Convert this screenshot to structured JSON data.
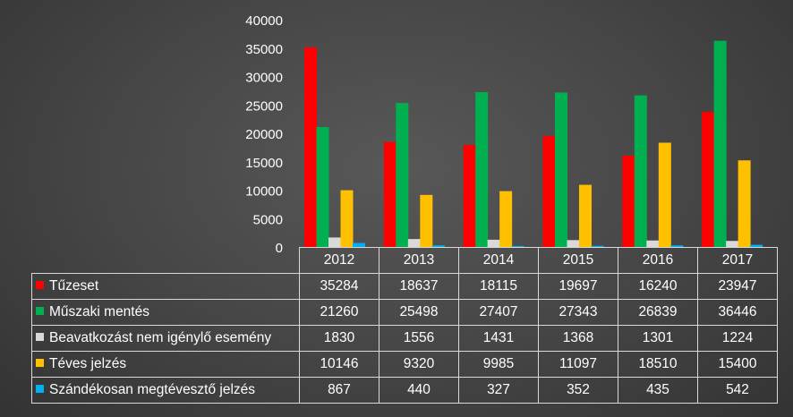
{
  "chart_data": {
    "type": "bar",
    "categories": [
      "2012",
      "2013",
      "2014",
      "2015",
      "2016",
      "2017"
    ],
    "series": [
      {
        "name": "Tűzeset",
        "color": "#ff0000",
        "values": [
          35284,
          18637,
          18115,
          19697,
          16240,
          23947
        ]
      },
      {
        "name": "Műszaki mentés",
        "color": "#00b050",
        "values": [
          21260,
          25498,
          27407,
          27343,
          26839,
          36446
        ]
      },
      {
        "name": "Beavatkozást nem igénylő esemény",
        "color": "#d9d9d9",
        "values": [
          1830,
          1556,
          1431,
          1368,
          1301,
          1224
        ]
      },
      {
        "name": "Téves jelzés",
        "color": "#ffc000",
        "values": [
          10146,
          9320,
          9985,
          11097,
          18510,
          15400
        ]
      },
      {
        "name": "Szándékosan megtévesztő jelzés",
        "color": "#00b0f0",
        "values": [
          867,
          440,
          327,
          352,
          435,
          542
        ]
      }
    ],
    "y_ticks": [
      "0",
      "5000",
      "10000",
      "15000",
      "20000",
      "25000",
      "30000",
      "35000",
      "40000"
    ],
    "ylim": [
      0,
      40000
    ],
    "grid": false,
    "legend": "data-table"
  }
}
